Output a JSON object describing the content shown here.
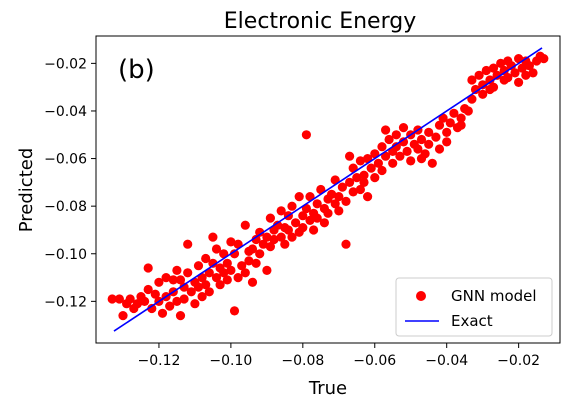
{
  "chart_data": {
    "type": "scatter",
    "title": "Electronic Energy",
    "panel_label": "(b)",
    "xlabel": "True",
    "ylabel": "Predicted",
    "xlim": [
      -0.1375,
      -0.0085
    ],
    "ylim": [
      -0.1375,
      -0.0085
    ],
    "xticks": [
      -0.12,
      -0.1,
      -0.08,
      -0.06,
      -0.04,
      -0.02
    ],
    "yticks": [
      -0.12,
      -0.1,
      -0.08,
      -0.06,
      -0.04,
      -0.02
    ],
    "xtick_labels": [
      "−0.12",
      "−0.10",
      "−0.08",
      "−0.06",
      "−0.04",
      "−0.02"
    ],
    "ytick_labels": [
      "−0.12",
      "−0.10",
      "−0.08",
      "−0.06",
      "−0.04",
      "−0.02"
    ],
    "grid": false,
    "legend_position": "lower-right",
    "series": [
      {
        "name": "GNN model",
        "kind": "scatter",
        "color": "#ff0000",
        "points": [
          [
            -0.133,
            -0.119
          ],
          [
            -0.131,
            -0.119
          ],
          [
            -0.13,
            -0.126
          ],
          [
            -0.129,
            -0.121
          ],
          [
            -0.128,
            -0.119
          ],
          [
            -0.127,
            -0.123
          ],
          [
            -0.126,
            -0.121
          ],
          [
            -0.125,
            -0.118
          ],
          [
            -0.124,
            -0.12
          ],
          [
            -0.123,
            -0.106
          ],
          [
            -0.123,
            -0.115
          ],
          [
            -0.122,
            -0.123
          ],
          [
            -0.121,
            -0.117
          ],
          [
            -0.12,
            -0.12
          ],
          [
            -0.12,
            -0.112
          ],
          [
            -0.119,
            -0.125
          ],
          [
            -0.118,
            -0.11
          ],
          [
            -0.118,
            -0.118
          ],
          [
            -0.117,
            -0.122
          ],
          [
            -0.116,
            -0.111
          ],
          [
            -0.116,
            -0.116
          ],
          [
            -0.115,
            -0.107
          ],
          [
            -0.115,
            -0.12
          ],
          [
            -0.114,
            -0.111
          ],
          [
            -0.114,
            -0.126
          ],
          [
            -0.113,
            -0.114
          ],
          [
            -0.113,
            -0.119
          ],
          [
            -0.112,
            -0.096
          ],
          [
            -0.112,
            -0.108
          ],
          [
            -0.111,
            -0.116
          ],
          [
            -0.11,
            -0.112
          ],
          [
            -0.11,
            -0.121
          ],
          [
            -0.109,
            -0.105
          ],
          [
            -0.109,
            -0.114
          ],
          [
            -0.108,
            -0.11
          ],
          [
            -0.108,
            -0.118
          ],
          [
            -0.107,
            -0.102
          ],
          [
            -0.107,
            -0.113
          ],
          [
            -0.106,
            -0.108
          ],
          [
            -0.106,
            -0.116
          ],
          [
            -0.105,
            -0.093
          ],
          [
            -0.105,
            -0.104
          ],
          [
            -0.104,
            -0.11
          ],
          [
            -0.104,
            -0.098
          ],
          [
            -0.103,
            -0.106
          ],
          [
            -0.103,
            -0.113
          ],
          [
            -0.102,
            -0.1
          ],
          [
            -0.102,
            -0.108
          ],
          [
            -0.101,
            -0.104
          ],
          [
            -0.101,
            -0.111
          ],
          [
            -0.1,
            -0.095
          ],
          [
            -0.1,
            -0.107
          ],
          [
            -0.099,
            -0.124
          ],
          [
            -0.099,
            -0.1
          ],
          [
            -0.098,
            -0.11
          ],
          [
            -0.098,
            -0.096
          ],
          [
            -0.097,
            -0.105
          ],
          [
            -0.096,
            -0.088
          ],
          [
            -0.096,
            -0.108
          ],
          [
            -0.095,
            -0.099
          ],
          [
            -0.095,
            -0.103
          ],
          [
            -0.094,
            -0.098
          ],
          [
            -0.094,
            -0.112
          ],
          [
            -0.093,
            -0.094
          ],
          [
            -0.093,
            -0.104
          ],
          [
            -0.092,
            -0.091
          ],
          [
            -0.092,
            -0.1
          ],
          [
            -0.091,
            -0.096
          ],
          [
            -0.09,
            -0.107
          ],
          [
            -0.09,
            -0.093
          ],
          [
            -0.089,
            -0.085
          ],
          [
            -0.089,
            -0.097
          ],
          [
            -0.088,
            -0.09
          ],
          [
            -0.088,
            -0.094
          ],
          [
            -0.087,
            -0.088
          ],
          [
            -0.086,
            -0.093
          ],
          [
            -0.086,
            -0.082
          ],
          [
            -0.085,
            -0.089
          ],
          [
            -0.085,
            -0.096
          ],
          [
            -0.084,
            -0.084
          ],
          [
            -0.084,
            -0.09
          ],
          [
            -0.083,
            -0.093
          ],
          [
            -0.083,
            -0.08
          ],
          [
            -0.082,
            -0.087
          ],
          [
            -0.081,
            -0.091
          ],
          [
            -0.081,
            -0.076
          ],
          [
            -0.08,
            -0.084
          ],
          [
            -0.08,
            -0.089
          ],
          [
            -0.079,
            -0.05
          ],
          [
            -0.079,
            -0.081
          ],
          [
            -0.078,
            -0.086
          ],
          [
            -0.078,
            -0.076
          ],
          [
            -0.077,
            -0.083
          ],
          [
            -0.077,
            -0.09
          ],
          [
            -0.076,
            -0.079
          ],
          [
            -0.076,
            -0.085
          ],
          [
            -0.075,
            -0.073
          ],
          [
            -0.074,
            -0.081
          ],
          [
            -0.074,
            -0.087
          ],
          [
            -0.073,
            -0.077
          ],
          [
            -0.073,
            -0.083
          ],
          [
            -0.072,
            -0.075
          ],
          [
            -0.071,
            -0.079
          ],
          [
            -0.071,
            -0.069
          ],
          [
            -0.07,
            -0.076
          ],
          [
            -0.07,
            -0.082
          ],
          [
            -0.069,
            -0.072
          ],
          [
            -0.068,
            -0.078
          ],
          [
            -0.068,
            -0.096
          ],
          [
            -0.067,
            -0.059
          ],
          [
            -0.067,
            -0.07
          ],
          [
            -0.066,
            -0.074
          ],
          [
            -0.066,
            -0.064
          ],
          [
            -0.065,
            -0.068
          ],
          [
            -0.064,
            -0.073
          ],
          [
            -0.064,
            -0.061
          ],
          [
            -0.063,
            -0.067
          ],
          [
            -0.063,
            -0.07
          ],
          [
            -0.062,
            -0.076
          ],
          [
            -0.062,
            -0.06
          ],
          [
            -0.061,
            -0.064
          ],
          [
            -0.06,
            -0.068
          ],
          [
            -0.06,
            -0.058
          ],
          [
            -0.059,
            -0.062
          ],
          [
            -0.058,
            -0.055
          ],
          [
            -0.058,
            -0.065
          ],
          [
            -0.057,
            -0.048
          ],
          [
            -0.057,
            -0.059
          ],
          [
            -0.056,
            -0.052
          ],
          [
            -0.055,
            -0.057
          ],
          [
            -0.055,
            -0.062
          ],
          [
            -0.054,
            -0.05
          ],
          [
            -0.054,
            -0.055
          ],
          [
            -0.053,
            -0.059
          ],
          [
            -0.052,
            -0.047
          ],
          [
            -0.052,
            -0.053
          ],
          [
            -0.051,
            -0.057
          ],
          [
            -0.05,
            -0.05
          ],
          [
            -0.05,
            -0.061
          ],
          [
            -0.049,
            -0.054
          ],
          [
            -0.048,
            -0.048
          ],
          [
            -0.048,
            -0.056
          ],
          [
            -0.047,
            -0.052
          ],
          [
            -0.046,
            -0.058
          ],
          [
            -0.045,
            -0.049
          ],
          [
            -0.045,
            -0.054
          ],
          [
            -0.044,
            -0.062
          ],
          [
            -0.043,
            -0.051
          ],
          [
            -0.042,
            -0.046
          ],
          [
            -0.042,
            -0.056
          ],
          [
            -0.041,
            -0.043
          ],
          [
            -0.04,
            -0.049
          ],
          [
            -0.04,
            -0.053
          ],
          [
            -0.039,
            -0.045
          ],
          [
            -0.038,
            -0.041
          ],
          [
            -0.037,
            -0.047
          ],
          [
            -0.036,
            -0.043
          ],
          [
            -0.035,
            -0.039
          ],
          [
            -0.034,
            -0.04
          ],
          [
            -0.033,
            -0.035
          ],
          [
            -0.033,
            -0.027
          ],
          [
            -0.032,
            -0.031
          ],
          [
            -0.031,
            -0.025
          ],
          [
            -0.03,
            -0.029
          ],
          [
            -0.03,
            -0.033
          ],
          [
            -0.029,
            -0.023
          ],
          [
            -0.028,
            -0.027
          ],
          [
            -0.027,
            -0.022
          ],
          [
            -0.027,
            -0.03
          ],
          [
            -0.026,
            -0.025
          ],
          [
            -0.025,
            -0.02
          ],
          [
            -0.024,
            -0.027
          ],
          [
            -0.024,
            -0.023
          ],
          [
            -0.023,
            -0.026
          ],
          [
            -0.022,
            -0.021
          ],
          [
            -0.021,
            -0.024
          ],
          [
            -0.02,
            -0.018
          ],
          [
            -0.02,
            -0.028
          ],
          [
            -0.019,
            -0.022
          ],
          [
            -0.018,
            -0.019
          ],
          [
            -0.018,
            -0.025
          ],
          [
            -0.017,
            -0.021
          ],
          [
            -0.016,
            -0.024
          ],
          [
            -0.015,
            -0.019
          ],
          [
            -0.014,
            -0.017
          ],
          [
            -0.013,
            -0.018
          ],
          [
            -0.023,
            -0.019
          ],
          [
            -0.028,
            -0.031
          ],
          [
            -0.036,
            -0.046
          ],
          [
            -0.047,
            -0.06
          ]
        ]
      },
      {
        "name": "Exact",
        "kind": "line",
        "color": "#0000ff",
        "points": [
          [
            -0.1325,
            -0.1325
          ],
          [
            -0.0135,
            -0.0135
          ]
        ]
      }
    ]
  }
}
